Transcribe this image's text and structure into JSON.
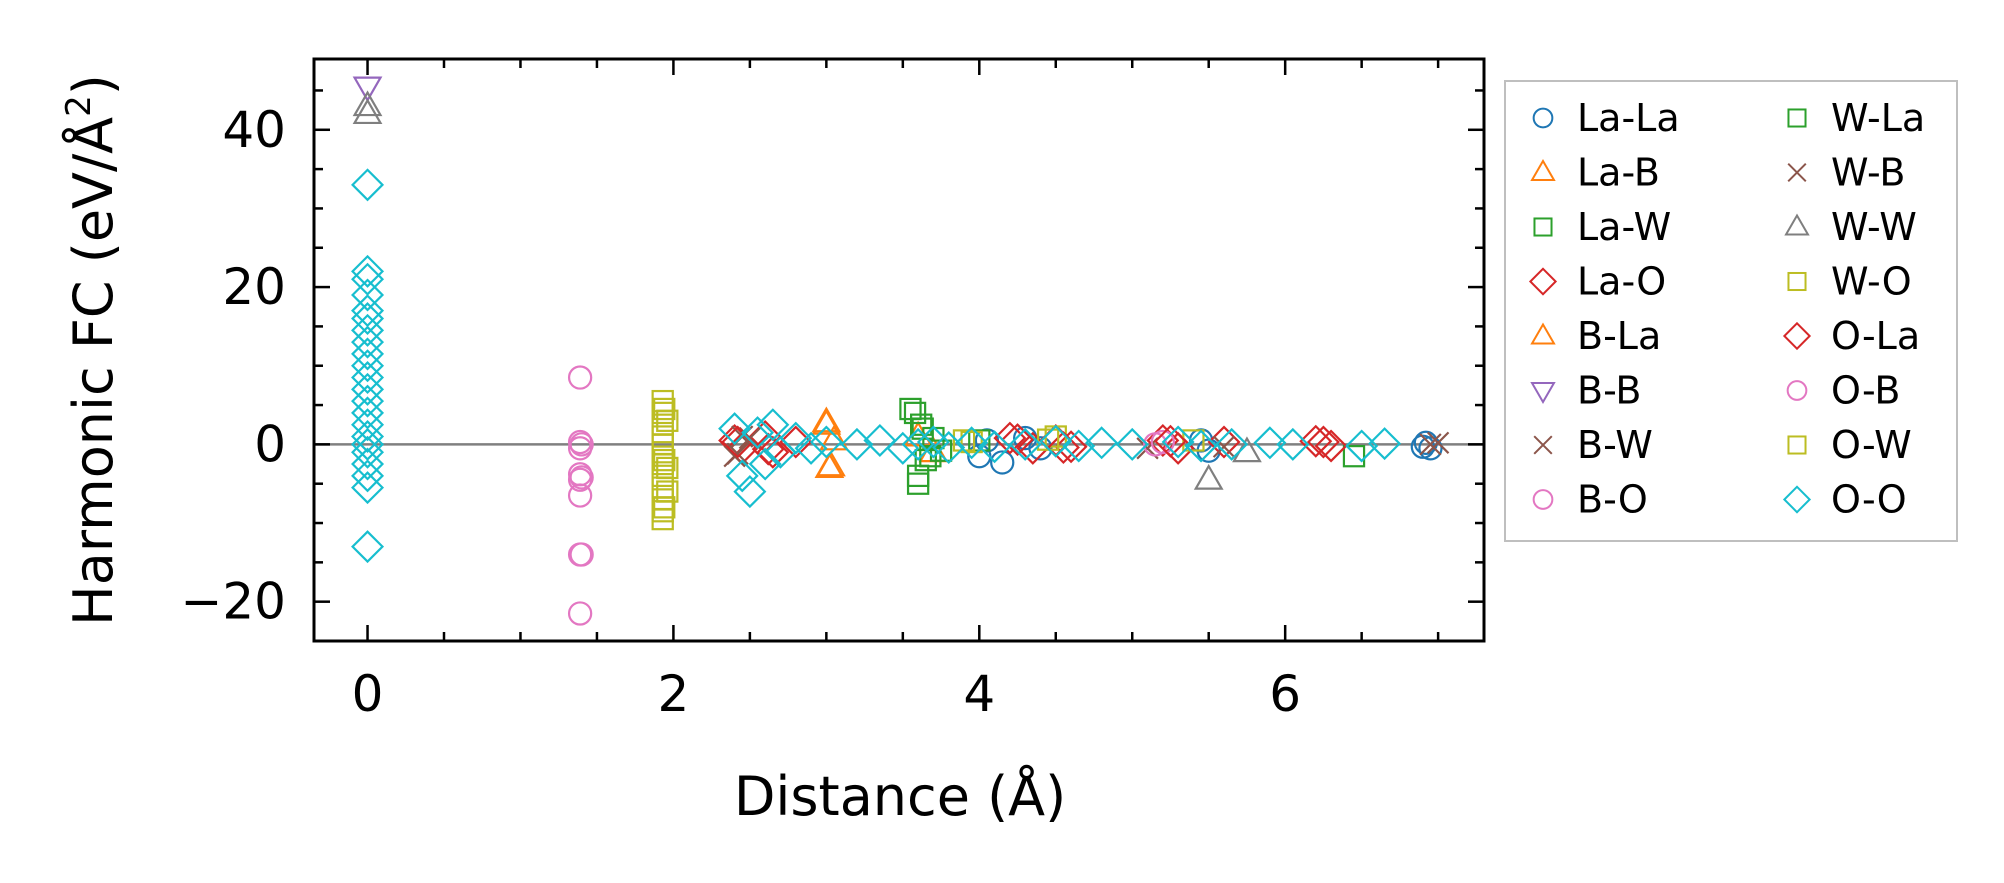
{
  "chart_data": {
    "type": "scatter",
    "xlabel": "Distance (Å)",
    "ylabel_prefix": "Harmonic FC (eV/Å",
    "ylabel_exponent": "2",
    "ylabel_suffix": ")",
    "xlim": [
      -0.35,
      7.3
    ],
    "ylim": [
      -25,
      49
    ],
    "xticks": [
      0,
      2,
      4,
      6
    ],
    "xtick_labels": [
      "0",
      "2",
      "4",
      "6"
    ],
    "yticks": [
      -20,
      0,
      20,
      40
    ],
    "ytick_labels": [
      "−20",
      "0",
      "20",
      "40"
    ],
    "reference_line_y": 0,
    "grid": false,
    "legend_location": "outside-right",
    "series": [
      {
        "name": "La-La",
        "marker": "circle",
        "color": "#1f77b4",
        "points": [
          [
            4.0,
            -1.5
          ],
          [
            4.05,
            0.5
          ],
          [
            4.15,
            -2.3
          ],
          [
            4.3,
            0.8
          ],
          [
            4.4,
            -0.5
          ],
          [
            5.5,
            -0.8
          ],
          [
            5.45,
            0.5
          ],
          [
            6.9,
            -0.3
          ],
          [
            6.92,
            0.2
          ],
          [
            6.95,
            -0.5
          ]
        ]
      },
      {
        "name": "La-B",
        "marker": "triangle-up",
        "color": "#ff7f0e",
        "points": [
          [
            3.0,
            2.5
          ],
          [
            3.02,
            -3.0
          ],
          [
            3.05,
            0.5
          ],
          [
            3.6,
            1.0
          ],
          [
            3.7,
            -1.0
          ]
        ]
      },
      {
        "name": "La-W",
        "marker": "square",
        "color": "#2ca02c",
        "points": [
          [
            3.55,
            4.5
          ],
          [
            3.6,
            -4.0
          ],
          [
            3.62,
            2.5
          ],
          [
            3.65,
            -2.0
          ],
          [
            3.7,
            0.8
          ],
          [
            3.75,
            -0.8
          ],
          [
            4.0,
            0.5
          ],
          [
            6.45,
            -1.5
          ]
        ]
      },
      {
        "name": "La-O",
        "marker": "diamond",
        "color": "#d62728",
        "points": [
          [
            2.4,
            0.5
          ],
          [
            2.45,
            -0.5
          ],
          [
            2.6,
            1.0
          ],
          [
            2.65,
            -1.0
          ],
          [
            2.8,
            0.3
          ],
          [
            4.2,
            0.8
          ],
          [
            4.35,
            -0.5
          ],
          [
            4.5,
            0.5
          ],
          [
            4.6,
            -0.3
          ],
          [
            5.2,
            0.5
          ],
          [
            5.3,
            -0.5
          ],
          [
            5.6,
            0.3
          ],
          [
            6.2,
            0.4
          ],
          [
            6.3,
            -0.2
          ]
        ]
      },
      {
        "name": "B-La",
        "marker": "triangle-up",
        "color": "#ff7f0e",
        "points": [
          [
            3.0,
            2.8
          ],
          [
            3.03,
            -2.8
          ]
        ]
      },
      {
        "name": "B-B",
        "marker": "triangle-down",
        "color": "#9467bd",
        "points": [
          [
            0.0,
            45.5
          ]
        ]
      },
      {
        "name": "B-W",
        "marker": "x",
        "color": "#8c564b",
        "points": [
          [
            2.4,
            -1.5
          ],
          [
            2.45,
            1.0
          ],
          [
            5.1,
            -0.5
          ],
          [
            5.6,
            -0.3
          ],
          [
            6.95,
            0.0
          ],
          [
            7.0,
            0.2
          ]
        ]
      },
      {
        "name": "B-O",
        "marker": "circle",
        "color": "#e377c2",
        "points": [
          [
            1.39,
            8.5
          ],
          [
            1.39,
            0.3
          ],
          [
            1.39,
            -0.5
          ],
          [
            1.39,
            -3.8
          ],
          [
            1.39,
            -4.5
          ],
          [
            1.39,
            -6.5
          ],
          [
            1.39,
            -14.0
          ],
          [
            1.39,
            -21.5
          ],
          [
            5.15,
            0.0
          ],
          [
            5.2,
            0.3
          ]
        ]
      },
      {
        "name": "W-La",
        "marker": "square",
        "color": "#2ca02c",
        "points": [
          [
            3.58,
            4.0
          ],
          [
            3.6,
            -5.0
          ],
          [
            3.63,
            2.0
          ],
          [
            3.68,
            -1.5
          ]
        ]
      },
      {
        "name": "W-B",
        "marker": "x",
        "color": "#8c564b",
        "points": [
          [
            2.42,
            -1.2
          ],
          [
            2.5,
            0.8
          ]
        ]
      },
      {
        "name": "W-W",
        "marker": "triangle-up",
        "color": "#7f7f7f",
        "points": [
          [
            0.0,
            43.0
          ],
          [
            0.0,
            42.0
          ],
          [
            5.5,
            -4.5
          ],
          [
            5.75,
            -1.0
          ]
        ]
      },
      {
        "name": "W-O",
        "marker": "square",
        "color": "#bcbd22",
        "points": [
          [
            1.93,
            5.5
          ],
          [
            1.93,
            4.0
          ],
          [
            1.93,
            2.5
          ],
          [
            1.93,
            1.0
          ],
          [
            1.93,
            0.0
          ],
          [
            1.93,
            -1.0
          ],
          [
            1.93,
            -2.5
          ],
          [
            1.93,
            -4.0
          ],
          [
            1.93,
            -5.5
          ],
          [
            1.93,
            -7.0
          ],
          [
            1.93,
            -8.5
          ],
          [
            1.93,
            -9.5
          ],
          [
            1.96,
            3.0
          ],
          [
            1.96,
            -3.0
          ],
          [
            1.96,
            -6.0
          ],
          [
            3.9,
            0.5
          ],
          [
            4.5,
            1.0
          ],
          [
            5.4,
            0.5
          ]
        ]
      },
      {
        "name": "O-La",
        "marker": "diamond",
        "color": "#d62728",
        "points": [
          [
            2.42,
            0.3
          ],
          [
            2.62,
            -0.6
          ],
          [
            4.25,
            0.6
          ],
          [
            4.55,
            -0.4
          ],
          [
            5.25,
            0.4
          ],
          [
            6.25,
            0.3
          ]
        ]
      },
      {
        "name": "O-B",
        "marker": "circle",
        "color": "#e377c2",
        "points": [
          [
            1.4,
            0.0
          ],
          [
            1.4,
            -4.2
          ],
          [
            1.4,
            -14.0
          ]
        ]
      },
      {
        "name": "O-W",
        "marker": "square",
        "color": "#bcbd22",
        "points": [
          [
            1.94,
            4.5
          ],
          [
            1.94,
            -2.0
          ],
          [
            1.94,
            -8.0
          ],
          [
            3.95,
            0.3
          ],
          [
            4.45,
            0.6
          ]
        ]
      },
      {
        "name": "O-O",
        "marker": "diamond",
        "color": "#17becf",
        "points": [
          [
            0.0,
            33.0
          ],
          [
            0.0,
            22.0
          ],
          [
            0.0,
            21.0
          ],
          [
            0.0,
            19.0
          ],
          [
            0.0,
            17.0
          ],
          [
            0.0,
            16.0
          ],
          [
            0.0,
            14.5
          ],
          [
            0.0,
            13.0
          ],
          [
            0.0,
            11.5
          ],
          [
            0.0,
            10.0
          ],
          [
            0.0,
            8.5
          ],
          [
            0.0,
            7.0
          ],
          [
            0.0,
            5.5
          ],
          [
            0.0,
            4.0
          ],
          [
            0.0,
            2.5
          ],
          [
            0.0,
            1.0
          ],
          [
            0.0,
            0.0
          ],
          [
            0.0,
            -1.0
          ],
          [
            0.0,
            -2.5
          ],
          [
            0.0,
            -4.0
          ],
          [
            0.0,
            -5.5
          ],
          [
            0.0,
            -13.0
          ],
          [
            2.4,
            2.0
          ],
          [
            2.45,
            -4.0
          ],
          [
            2.5,
            -6.0
          ],
          [
            2.55,
            1.5
          ],
          [
            2.6,
            -2.5
          ],
          [
            2.65,
            2.5
          ],
          [
            2.7,
            -1.0
          ],
          [
            2.8,
            0.8
          ],
          [
            2.9,
            -0.5
          ],
          [
            3.0,
            0.3
          ],
          [
            3.2,
            0.0
          ],
          [
            3.35,
            0.5
          ],
          [
            3.5,
            -0.5
          ],
          [
            3.6,
            0.0
          ],
          [
            3.7,
            0.3
          ],
          [
            3.8,
            -0.4
          ],
          [
            3.95,
            0.2
          ],
          [
            4.1,
            -0.3
          ],
          [
            4.3,
            0.0
          ],
          [
            4.5,
            0.4
          ],
          [
            4.65,
            -0.2
          ],
          [
            4.8,
            0.2
          ],
          [
            5.0,
            0.0
          ],
          [
            5.3,
            0.3
          ],
          [
            5.45,
            -0.2
          ],
          [
            5.65,
            0.0
          ],
          [
            5.9,
            0.2
          ],
          [
            6.05,
            0.0
          ],
          [
            6.5,
            -0.2
          ],
          [
            6.65,
            0.1
          ]
        ]
      }
    ]
  }
}
